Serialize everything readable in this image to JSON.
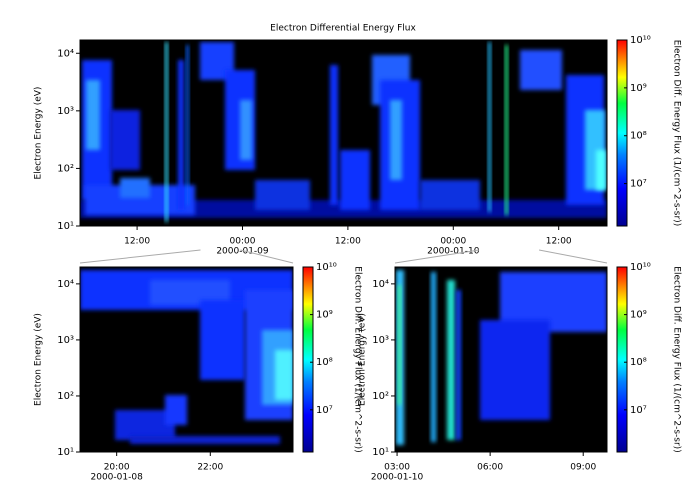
{
  "chart_data": [
    {
      "type": "spectrogram",
      "title": "Electron Differential Energy Flux",
      "ylabel": "Electron Energy (eV)",
      "colorbar_label": "Electron Diff. Energy Flux (1/(cm^2-s-sr))",
      "xlim": [
        "2000-01-08T05:30",
        "2000-01-10T17:30"
      ],
      "xticks": [
        {
          "value": "2000-01-08T12:00",
          "label": "12:00"
        },
        {
          "value": "2000-01-09T00:00",
          "label": "00:00",
          "date": "2000-01-09"
        },
        {
          "value": "2000-01-09T12:00",
          "label": "12:00"
        },
        {
          "value": "2000-01-10T00:00",
          "label": "00:00",
          "date": "2000-01-10"
        },
        {
          "value": "2000-01-10T12:00",
          "label": "12:00"
        }
      ],
      "yscale": "log",
      "ylim": [
        10,
        17000
      ],
      "yticks": [
        {
          "value": 10,
          "label": "10¹"
        },
        {
          "value": 100,
          "label": "10²"
        },
        {
          "value": 1000,
          "label": "10³"
        },
        {
          "value": 10000,
          "label": "10⁴"
        }
      ],
      "clim": [
        1300000,
        10000000000
      ],
      "cticks": [
        {
          "value": 10000000,
          "label": "10⁷"
        },
        {
          "value": 100000000,
          "label": "10⁸"
        },
        {
          "value": 1000000000,
          "label": "10⁹"
        },
        {
          "value": 10000000000,
          "label": "10¹⁰"
        }
      ]
    },
    {
      "type": "spectrogram",
      "ylabel": "Electron Energy (eV)",
      "colorbar_label": "Electron Diff. Energy Flux (1/(cm^2-s-sr))",
      "xlim": [
        "2000-01-08T19:13",
        "2000-01-08T23:46"
      ],
      "xticks": [
        {
          "value": "2000-01-08T20:00",
          "label": "20:00",
          "date": "2000-01-08"
        },
        {
          "value": "2000-01-08T22:00",
          "label": "22:00"
        }
      ],
      "yscale": "log",
      "ylim": [
        10,
        20000
      ],
      "yticks": [
        {
          "value": 10,
          "label": "10¹"
        },
        {
          "value": 100,
          "label": "10²"
        },
        {
          "value": 1000,
          "label": "10³"
        },
        {
          "value": 10000,
          "label": "10⁴"
        }
      ],
      "clim": [
        1300000,
        10000000000
      ],
      "cticks": [
        {
          "value": 10000000,
          "label": "10⁷"
        },
        {
          "value": 100000000,
          "label": "10⁸"
        },
        {
          "value": 1000000000,
          "label": "10⁹"
        },
        {
          "value": 10000000000,
          "label": "10¹⁰"
        }
      ]
    },
    {
      "type": "spectrogram",
      "ylabel": "Electron Energy (eV)",
      "colorbar_label": "Electron Diff. Energy Flux (1/(cm^2-s-sr))",
      "xlim": [
        "2000-01-10T02:56",
        "2000-01-10T09:46"
      ],
      "xticks": [
        {
          "value": "2000-01-10T03:00",
          "label": "03:00",
          "date": "2000-01-10"
        },
        {
          "value": "2000-01-10T06:00",
          "label": "06:00"
        },
        {
          "value": "2000-01-10T09:00",
          "label": "09:00"
        }
      ],
      "yscale": "log",
      "ylim": [
        10,
        20000
      ],
      "yticks": [
        {
          "value": 10,
          "label": "10¹"
        },
        {
          "value": 100,
          "label": "10²"
        },
        {
          "value": 1000,
          "label": "10³"
        },
        {
          "value": 10000,
          "label": "10⁴"
        }
      ],
      "clim": [
        1300000,
        10000000000
      ],
      "cticks": [
        {
          "value": 10000000,
          "label": "10⁷"
        },
        {
          "value": 100000000,
          "label": "10⁸"
        },
        {
          "value": 1000000000,
          "label": "10⁹"
        },
        {
          "value": 10000000000,
          "label": "10¹⁰"
        }
      ]
    }
  ]
}
